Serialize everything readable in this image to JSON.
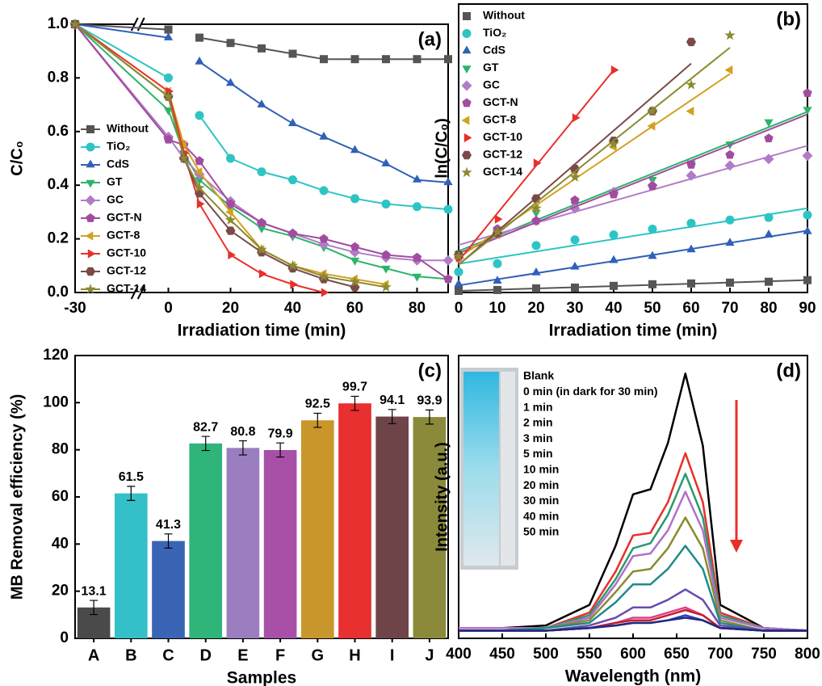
{
  "chart_data": [
    {
      "type": "line",
      "label": "(a)",
      "xlabel": "Irradiation time (min)",
      "ylabel": "C/C₀",
      "x": [
        -30,
        0,
        5,
        10,
        20,
        30,
        40,
        50,
        60,
        70,
        80,
        90
      ],
      "xlim": [
        -30,
        90
      ],
      "xticks": [
        -30,
        0,
        20,
        40,
        60,
        80
      ],
      "axis_break": true,
      "ylim": [
        0,
        1
      ],
      "yticks": [
        {
          "value": 0,
          "label": "0.0"
        },
        {
          "value": 0.2,
          "label": "0.2"
        },
        {
          "value": 0.4,
          "label": "0.4"
        },
        {
          "value": 0.6,
          "label": "0.6"
        },
        {
          "value": 0.8,
          "label": "0.8"
        },
        {
          "value": 1,
          "label": "1.0"
        }
      ],
      "series": [
        {
          "name": "Without",
          "color": "#555555",
          "marker": "square",
          "values": [
            1.0,
            0.98,
            null,
            0.95,
            0.93,
            0.91,
            0.89,
            0.87,
            0.87,
            0.87,
            0.87,
            0.87
          ]
        },
        {
          "name": "TiO₂",
          "color": "#2ec4c4",
          "marker": "circle",
          "values": [
            1.0,
            0.8,
            null,
            0.66,
            0.5,
            0.45,
            0.42,
            0.38,
            0.35,
            0.33,
            0.32,
            0.31
          ]
        },
        {
          "name": "CdS",
          "color": "#3060b8",
          "marker": "triangle-up",
          "values": [
            1.0,
            0.95,
            null,
            0.86,
            0.78,
            0.7,
            0.63,
            0.58,
            0.53,
            0.48,
            0.42,
            0.41
          ]
        },
        {
          "name": "GT",
          "color": "#2db36b",
          "marker": "triangle-down",
          "values": [
            1.0,
            0.68,
            0.52,
            0.42,
            0.32,
            0.24,
            0.21,
            0.17,
            0.12,
            0.09,
            0.06,
            0.05
          ]
        },
        {
          "name": "GC",
          "color": "#b07cc6",
          "marker": "diamond",
          "values": [
            1.0,
            0.58,
            0.5,
            0.44,
            0.34,
            0.26,
            0.22,
            0.18,
            0.15,
            0.13,
            0.12,
            0.12
          ]
        },
        {
          "name": "GCT-N",
          "color": "#a24ca0",
          "marker": "pentagon",
          "values": [
            1.0,
            0.57,
            0.55,
            0.49,
            0.33,
            0.26,
            0.22,
            0.2,
            0.17,
            0.14,
            0.13,
            0.05
          ]
        },
        {
          "name": "GCT-8",
          "color": "#d4a020",
          "marker": "triangle-left",
          "values": [
            1.0,
            0.75,
            0.55,
            0.45,
            0.3,
            0.16,
            0.1,
            0.07,
            0.05,
            0.03,
            null,
            null
          ]
        },
        {
          "name": "GCT-10",
          "color": "#e8302a",
          "marker": "triangle-right",
          "values": [
            1.0,
            0.75,
            0.52,
            0.33,
            0.14,
            0.07,
            0.03,
            0.0,
            null,
            null,
            null,
            null
          ]
        },
        {
          "name": "GCT-12",
          "color": "#7a4a48",
          "marker": "hexagon",
          "values": [
            1.0,
            0.73,
            0.5,
            0.37,
            0.23,
            0.15,
            0.09,
            0.05,
            0.02,
            null,
            null,
            null
          ]
        },
        {
          "name": "GCT-14",
          "color": "#8a8a30",
          "marker": "star",
          "values": [
            1.0,
            0.73,
            0.5,
            0.39,
            0.27,
            0.16,
            0.1,
            0.06,
            0.04,
            0.02,
            null,
            null
          ]
        }
      ]
    },
    {
      "type": "scatter",
      "label": "(b)",
      "xlabel": "Irradiation time (min)",
      "ylabel": "ln(C/C₀)",
      "fit_line": true,
      "x": [
        0,
        10,
        20,
        30,
        40,
        50,
        60,
        70,
        80,
        90
      ],
      "xlim": [
        0,
        90
      ],
      "xticks": [
        0,
        10,
        20,
        30,
        40,
        50,
        60,
        70,
        80,
        90
      ],
      "ylim": [
        0,
        3.5
      ],
      "series": [
        {
          "name": "Without",
          "color": "#555555",
          "marker": "square",
          "values": [
            0.02,
            0.03,
            0.05,
            0.06,
            0.08,
            0.1,
            0.11,
            0.12,
            0.13,
            0.15
          ]
        },
        {
          "name": "TiO₂",
          "color": "#2ec4c4",
          "marker": "circle",
          "values": [
            0.25,
            0.35,
            0.57,
            0.64,
            0.7,
            0.77,
            0.84,
            0.88,
            0.91,
            0.94
          ]
        },
        {
          "name": "CdS",
          "color": "#3060b8",
          "marker": "triangle-up",
          "values": [
            0.1,
            0.14,
            0.24,
            0.31,
            0.39,
            0.44,
            0.52,
            0.6,
            0.7,
            0.74
          ]
        },
        {
          "name": "GT",
          "color": "#2db36b",
          "marker": "triangle-down",
          "values": [
            0.47,
            0.72,
            0.97,
            1.07,
            1.22,
            1.37,
            1.57,
            1.8,
            2.07,
            2.22
          ]
        },
        {
          "name": "GC",
          "color": "#b07cc6",
          "marker": "diamond",
          "values": [
            0.42,
            0.72,
            0.87,
            1.02,
            1.22,
            1.3,
            1.42,
            1.54,
            1.62,
            1.66
          ]
        },
        {
          "name": "GCT-N",
          "color": "#a24ca0",
          "marker": "pentagon",
          "values": [
            0.44,
            0.77,
            0.87,
            1.12,
            1.19,
            1.29,
            1.55,
            1.67,
            1.87,
            2.42
          ]
        },
        {
          "name": "GCT-8",
          "color": "#d4a020",
          "marker": "triangle-left",
          "values": [
            0.42,
            0.7,
            1.02,
            1.47,
            1.77,
            2.02,
            2.2,
            2.7,
            null,
            null
          ]
        },
        {
          "name": "GCT-10",
          "color": "#e8302a",
          "marker": "triangle-right",
          "values": [
            0.42,
            0.89,
            1.57,
            2.12,
            2.7,
            null,
            null,
            null,
            null,
            null
          ]
        },
        {
          "name": "GCT-12",
          "color": "#7a4a48",
          "marker": "hexagon",
          "values": [
            0.46,
            0.72,
            1.14,
            1.5,
            1.84,
            2.2,
            3.04,
            null,
            null,
            null
          ]
        },
        {
          "name": "GCT-14",
          "color": "#8a8a30",
          "marker": "star",
          "values": [
            0.44,
            0.74,
            1.02,
            1.4,
            1.8,
            2.2,
            2.52,
            3.12,
            null,
            null
          ]
        }
      ]
    },
    {
      "type": "bar",
      "label": "(c)",
      "xlabel": "Samples",
      "ylabel": "MB Removal efficiency (%)",
      "categories": [
        "A",
        "B",
        "C",
        "D",
        "E",
        "F",
        "G",
        "H",
        "I",
        "J"
      ],
      "values": [
        13.1,
        61.5,
        41.3,
        82.7,
        80.8,
        79.9,
        92.5,
        99.7,
        94.1,
        93.9
      ],
      "errors": [
        3,
        3,
        3,
        3,
        3,
        3,
        3,
        3,
        3,
        3
      ],
      "colors": [
        "#4a4a4a",
        "#33c0c8",
        "#3a64b4",
        "#2fb47a",
        "#9a7ec0",
        "#a850a8",
        "#c8962a",
        "#e83030",
        "#6e4448",
        "#8a8a3a"
      ],
      "ylim": [
        0,
        120
      ],
      "yticks": [
        0,
        20,
        40,
        60,
        80,
        100,
        120
      ]
    },
    {
      "type": "line",
      "label": "(d)",
      "xlabel": "Wavelength (nm)",
      "ylabel": "Intensity (a.u.)",
      "x": [
        400,
        450,
        500,
        550,
        580,
        600,
        620,
        640,
        660,
        680,
        700,
        750,
        800
      ],
      "xlim": [
        400,
        800
      ],
      "xticks": [
        400,
        450,
        500,
        550,
        600,
        650,
        700,
        750,
        800
      ],
      "ylim": [
        0,
        1.1
      ],
      "series": [
        {
          "name": "Blank",
          "color": "#000000",
          "values": [
            0.04,
            0.04,
            0.05,
            0.13,
            0.36,
            0.56,
            0.58,
            0.76,
            1.03,
            0.75,
            0.13,
            0.04,
            0.03
          ]
        },
        {
          "name": "0 min (in dark for 30 min)",
          "color": "#e8302a",
          "values": [
            0.04,
            0.04,
            0.04,
            0.1,
            0.26,
            0.4,
            0.41,
            0.53,
            0.72,
            0.53,
            0.1,
            0.04,
            0.03
          ]
        },
        {
          "name": "1 min",
          "color": "#2a9a70",
          "values": [
            0.04,
            0.04,
            0.04,
            0.09,
            0.23,
            0.35,
            0.37,
            0.48,
            0.64,
            0.47,
            0.09,
            0.04,
            0.03
          ]
        },
        {
          "name": "2 min",
          "color": "#b070c8",
          "values": [
            0.04,
            0.04,
            0.04,
            0.08,
            0.21,
            0.32,
            0.33,
            0.42,
            0.57,
            0.42,
            0.08,
            0.04,
            0.03
          ]
        },
        {
          "name": "3 min",
          "color": "#8a8a30",
          "values": [
            0.03,
            0.03,
            0.04,
            0.07,
            0.18,
            0.26,
            0.27,
            0.35,
            0.47,
            0.35,
            0.07,
            0.03,
            0.03
          ]
        },
        {
          "name": "5 min",
          "color": "#208a8a",
          "values": [
            0.03,
            0.03,
            0.04,
            0.06,
            0.14,
            0.21,
            0.21,
            0.27,
            0.36,
            0.27,
            0.06,
            0.03,
            0.03
          ]
        },
        {
          "name": "10 min",
          "color": "#6a4cb0",
          "values": [
            0.03,
            0.03,
            0.03,
            0.05,
            0.08,
            0.12,
            0.12,
            0.15,
            0.19,
            0.15,
            0.05,
            0.03,
            0.03
          ]
        },
        {
          "name": "20 min",
          "color": "#e0408a",
          "values": [
            0.03,
            0.03,
            0.03,
            0.04,
            0.06,
            0.08,
            0.08,
            0.1,
            0.12,
            0.09,
            0.04,
            0.03,
            0.03
          ]
        },
        {
          "name": "30 min",
          "color": "#c02030",
          "values": [
            0.03,
            0.03,
            0.03,
            0.04,
            0.06,
            0.07,
            0.07,
            0.09,
            0.11,
            0.09,
            0.04,
            0.03,
            0.03
          ]
        },
        {
          "name": "40 min",
          "color": "#3040c0",
          "values": [
            0.03,
            0.03,
            0.03,
            0.04,
            0.05,
            0.06,
            0.06,
            0.07,
            0.09,
            0.07,
            0.04,
            0.03,
            0.03
          ]
        },
        {
          "name": "50 min",
          "color": "#202a80",
          "values": [
            0.03,
            0.03,
            0.03,
            0.04,
            0.05,
            0.06,
            0.06,
            0.07,
            0.08,
            0.07,
            0.04,
            0.03,
            0.03
          ]
        }
      ]
    }
  ]
}
